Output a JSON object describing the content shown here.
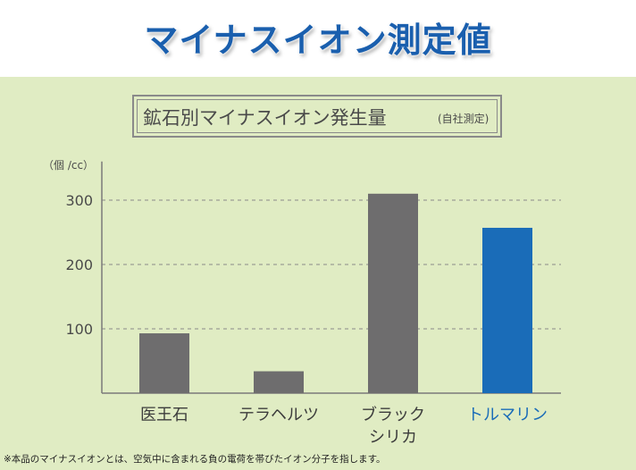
{
  "header": {
    "title": "マイナスイオン測定値"
  },
  "chart_data": {
    "type": "bar",
    "title": "鉱石別マイナスイオン発生量",
    "subtitle": "(自社測定)",
    "ylabel": "（個 /cc）",
    "xlabel": "",
    "categories": [
      [
        "医王石"
      ],
      [
        "テラヘルツ"
      ],
      [
        "ブラック",
        "シリカ"
      ],
      [
        "トルマリン"
      ]
    ],
    "values": [
      93,
      34,
      310,
      257
    ],
    "bar_colors": [
      "#6e6d6e",
      "#6e6d6e",
      "#6e6d6e",
      "#1a6cb8"
    ],
    "label_colors": [
      "#3c3c3c",
      "#3c3c3c",
      "#3c3c3c",
      "#1a6cb8"
    ],
    "ylim": [
      0,
      360
    ],
    "yticks": [
      100,
      200,
      300
    ],
    "grid": true,
    "legend": "none"
  },
  "footnote": "※本品のマイナスイオンとは、空気中に含まれる負の電荷を帯びたイオン分子を指します。"
}
